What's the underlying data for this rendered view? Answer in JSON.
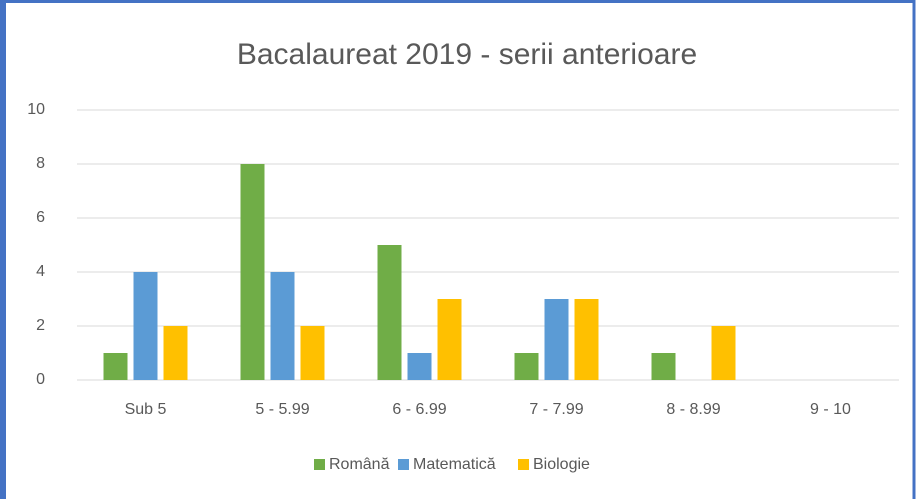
{
  "chart_data": {
    "type": "bar",
    "title": "Bacalaureat 2019 - serii anterioare",
    "categories": [
      "Sub 5",
      "5 - 5.99",
      "6 - 6.99",
      "7 - 7.99",
      "8 - 8.99",
      "9 - 10"
    ],
    "series": [
      {
        "name": "Română",
        "color": "#70ad47",
        "values": [
          1,
          8,
          5,
          1,
          1,
          0
        ]
      },
      {
        "name": "Matematică",
        "color": "#5b9bd5",
        "values": [
          4,
          4,
          1,
          3,
          0,
          0
        ]
      },
      {
        "name": "Biologie",
        "color": "#ffc000",
        "values": [
          2,
          2,
          3,
          3,
          2,
          0
        ]
      }
    ],
    "ylim": [
      0,
      10
    ],
    "yticks": [
      0,
      2,
      4,
      6,
      8,
      10
    ],
    "grid": true,
    "legend": "bottom"
  }
}
